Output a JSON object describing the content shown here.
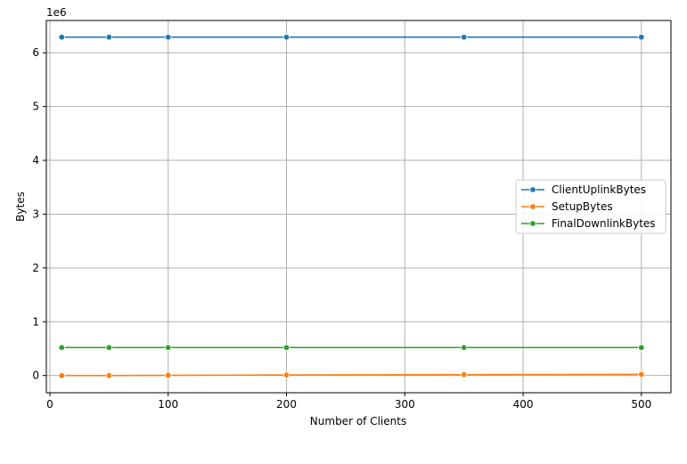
{
  "chart_data": {
    "type": "line",
    "x": [
      10,
      50,
      100,
      200,
      350,
      500
    ],
    "xlabel": "Number of Clients",
    "ylabel": "Bytes",
    "y_offset_label": "1e6",
    "xlim": [
      -3,
      525
    ],
    "ylim": [
      -0.32,
      6.6
    ],
    "x_ticks": [
      0,
      100,
      200,
      300,
      400,
      500
    ],
    "y_ticks": [
      0,
      1,
      2,
      3,
      4,
      5,
      6
    ],
    "grid": true,
    "legend_position": "center-right",
    "series": [
      {
        "name": "ClientUplinkBytes",
        "color": "#1f77b4",
        "values": [
          6.29,
          6.29,
          6.29,
          6.29,
          6.29,
          6.29
        ]
      },
      {
        "name": "SetupBytes",
        "color": "#ff7f0e",
        "values": [
          0.0,
          0.0,
          0.004,
          0.01,
          0.016,
          0.022
        ]
      },
      {
        "name": "FinalDownlinkBytes",
        "color": "#2ca02c",
        "values": [
          0.52,
          0.52,
          0.52,
          0.52,
          0.52,
          0.52
        ]
      }
    ]
  }
}
